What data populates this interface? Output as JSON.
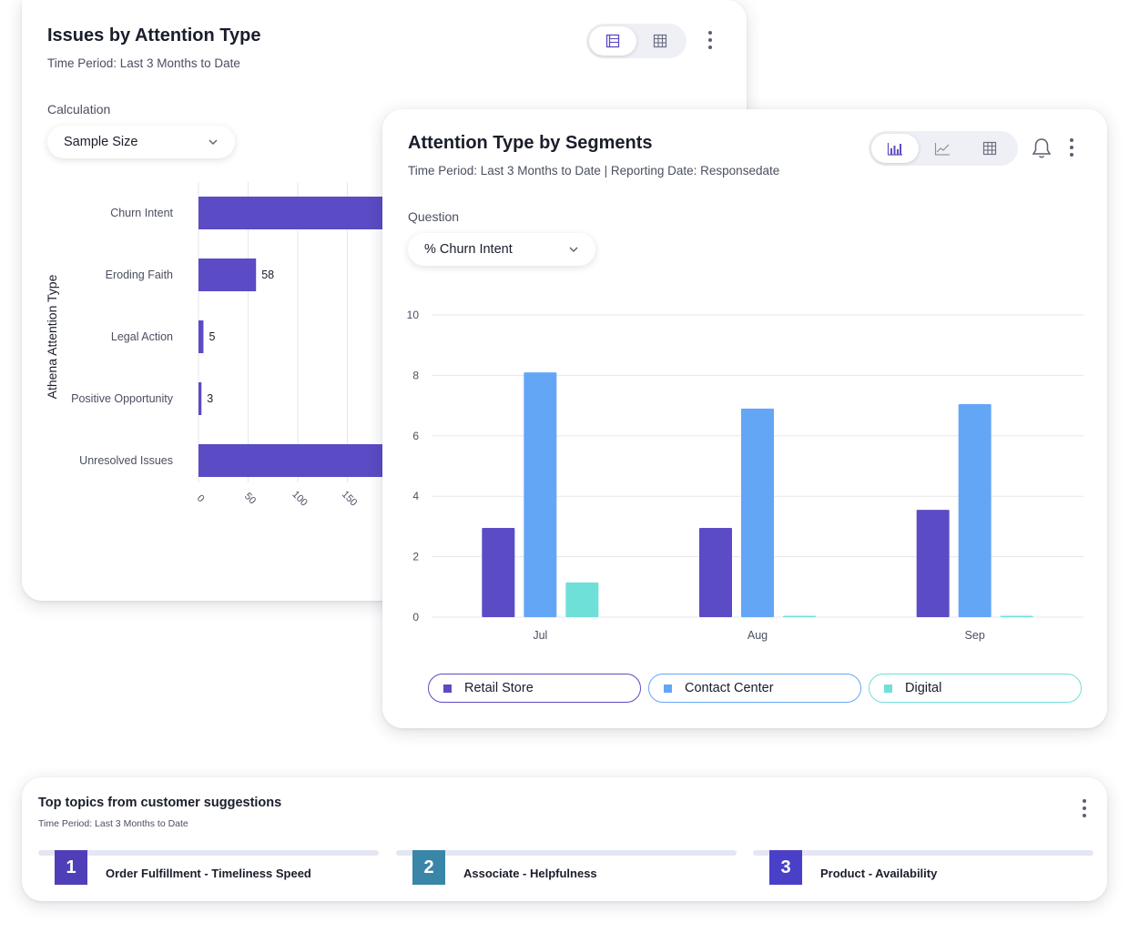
{
  "card1": {
    "title": "Issues by Attention Type",
    "subtitle": "Time Period: Last 3 Months to Date",
    "calculation_label": "Calculation",
    "calculation_value": "Sample Size",
    "chart_data": {
      "type": "bar",
      "orientation": "horizontal",
      "ylabel": "Athena Attention Type",
      "categories": [
        "Churn Intent",
        "Eroding Faith",
        "Legal Action",
        "Positive Opportunity",
        "Unresolved Issues"
      ],
      "values": [
        null,
        58,
        5,
        3,
        null
      ],
      "value_labels": [
        "",
        "58",
        "5",
        "3",
        ""
      ],
      "xticks": [
        "0",
        "50",
        "100",
        "150"
      ],
      "xlim": [
        0,
        200
      ],
      "color": "#5b4bc4"
    }
  },
  "card2": {
    "title": "Attention Type by Segments",
    "subtitle": "Time Period: Last 3 Months to Date | Reporting Date: Responsedate",
    "question_label": "Question",
    "question_value": "% Churn Intent",
    "chart_data": {
      "type": "bar",
      "categories": [
        "Jul",
        "Aug",
        "Sep"
      ],
      "series": [
        {
          "name": "Retail Store",
          "values": [
            2.95,
            2.95,
            3.55
          ],
          "color": "#5b4bc4"
        },
        {
          "name": "Contact Center",
          "values": [
            8.1,
            6.9,
            7.05
          ],
          "color": "#64a6f6"
        },
        {
          "name": "Digital",
          "values": [
            1.15,
            0.02,
            0.02
          ],
          "color": "#6fe0d8"
        }
      ],
      "yticks": [
        "0",
        "2",
        "4",
        "6",
        "8",
        "10"
      ],
      "ylim": [
        0,
        10
      ],
      "grid": true,
      "legend_position": "bottom"
    }
  },
  "card3": {
    "title": "Top topics from customer suggestions",
    "subtitle": "Time Period: Last 3 Months to Date",
    "topics": [
      {
        "rank": "1",
        "label": "Order Fulfillment - Timeliness Speed",
        "color": "#4e3fb8"
      },
      {
        "rank": "2",
        "label": "Associate - Helpfulness",
        "color": "#3a86a8"
      },
      {
        "rank": "3",
        "label": "Product - Availability",
        "color": "#4a40c8"
      }
    ]
  },
  "icons": [
    "list-view-icon",
    "table-view-icon",
    "bar-chart-icon",
    "line-chart-icon",
    "bell-icon",
    "more-vert-icon",
    "chevron-down-icon"
  ]
}
